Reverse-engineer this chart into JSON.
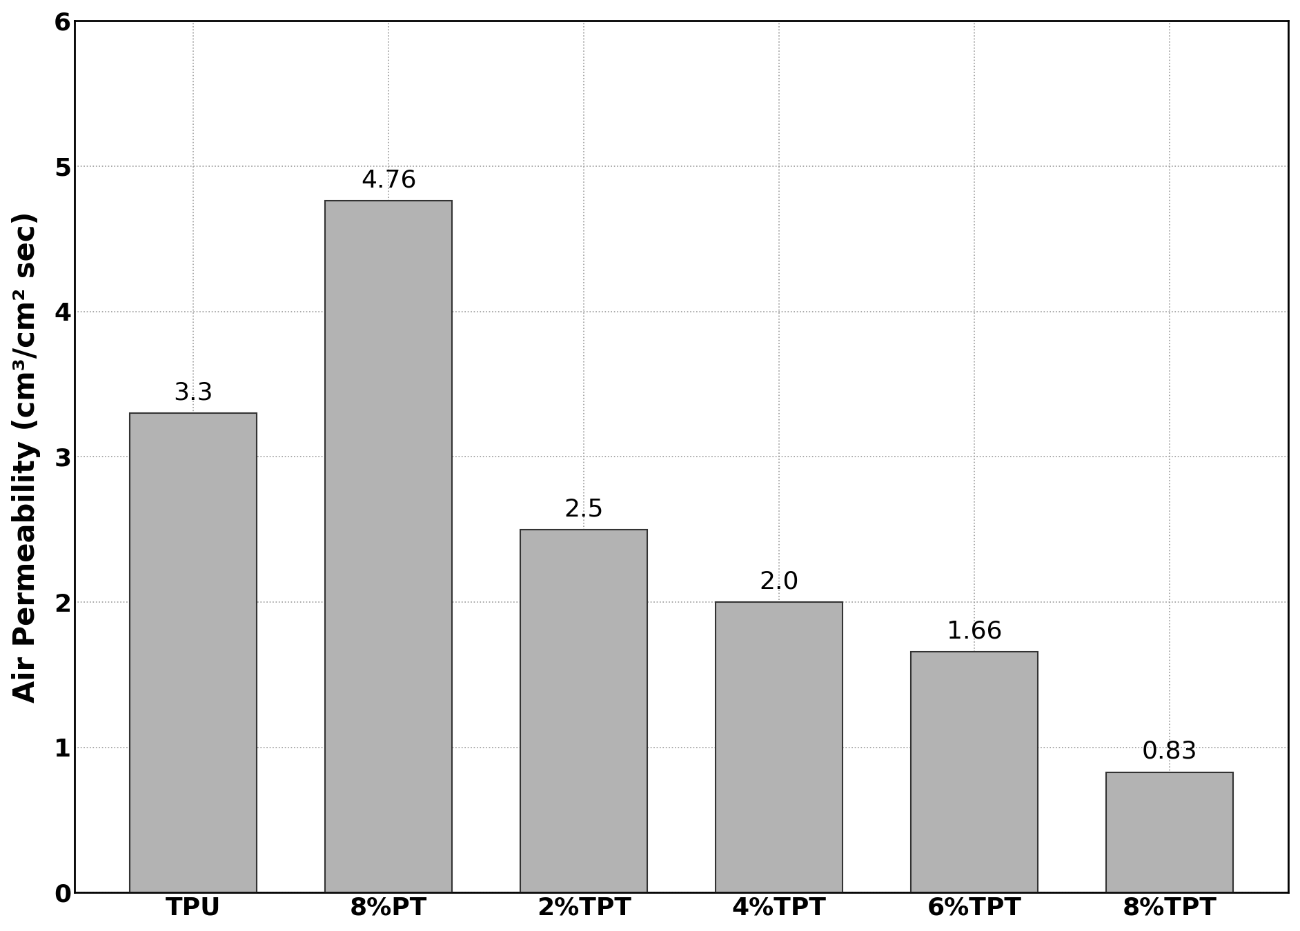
{
  "categories": [
    "TPU",
    "8%PT",
    "2%TPT",
    "4%TPT",
    "6%TPT",
    "8%TPT"
  ],
  "values": [
    3.3,
    4.76,
    2.5,
    2.0,
    1.66,
    0.83
  ],
  "labels": [
    "3.3",
    "4.76",
    "2.5",
    "2.0",
    "1.66",
    "0.83"
  ],
  "bar_color": "#b3b3b3",
  "bar_edgecolor": "#333333",
  "ylabel": "Air Permeability (cm³/cm² sec)",
  "ylim": [
    0,
    6
  ],
  "yticks": [
    0,
    1,
    2,
    3,
    4,
    5,
    6
  ],
  "grid_color": "#999999",
  "background_color": "#ffffff",
  "bar_width": 0.65,
  "label_fontsize": 26,
  "tick_fontsize": 26,
  "ylabel_fontsize": 30
}
